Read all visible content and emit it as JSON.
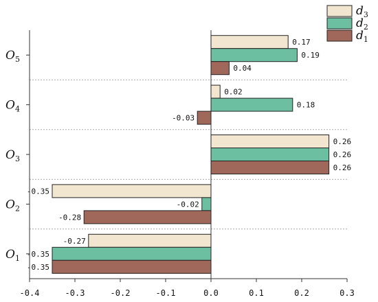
{
  "chart_data": {
    "type": "bar",
    "orientation": "horizontal",
    "categories": [
      "O1",
      "O2",
      "O3",
      "O4",
      "O5"
    ],
    "category_labels": [
      {
        "main": "O",
        "sub": "1"
      },
      {
        "main": "O",
        "sub": "2"
      },
      {
        "main": "O",
        "sub": "3"
      },
      {
        "main": "O",
        "sub": "4"
      },
      {
        "main": "O",
        "sub": "5"
      }
    ],
    "series": [
      {
        "name": "d3",
        "label_main": "d",
        "label_sub": "3",
        "color": "#f2e6d0",
        "values": [
          -0.27,
          -0.35,
          0.26,
          0.02,
          0.17
        ]
      },
      {
        "name": "d2",
        "label_main": "d",
        "label_sub": "2",
        "color": "#6cbfa0",
        "values": [
          -0.35,
          -0.02,
          0.26,
          0.18,
          0.19
        ]
      },
      {
        "name": "d1",
        "label_main": "d",
        "label_sub": "1",
        "color": "#a0685a",
        "values": [
          -0.35,
          -0.28,
          0.26,
          -0.03,
          0.04
        ]
      }
    ],
    "value_labels": [
      [
        "-0.27",
        "-0.35",
        "0.26",
        "0.02",
        "0.17"
      ],
      [
        "-0.35",
        "-0.02",
        "0.26",
        "0.18",
        "0.19"
      ],
      [
        "-0.35",
        "-0.28",
        "0.26",
        "-0.03",
        "0.04"
      ]
    ],
    "xlim": [
      -0.4,
      0.3
    ],
    "xticks": [
      -0.4,
      -0.3,
      -0.2,
      -0.1,
      0.0,
      0.1,
      0.2,
      0.3
    ],
    "xtick_labels": [
      "-0.4",
      "-0.3",
      "-0.2",
      "-0.1",
      "0.0",
      "0.1",
      "0.2",
      "0.3"
    ],
    "title": "",
    "xlabel": "",
    "ylabel": "",
    "grid": "dashed separators between categories",
    "legend_position": "top-right"
  }
}
